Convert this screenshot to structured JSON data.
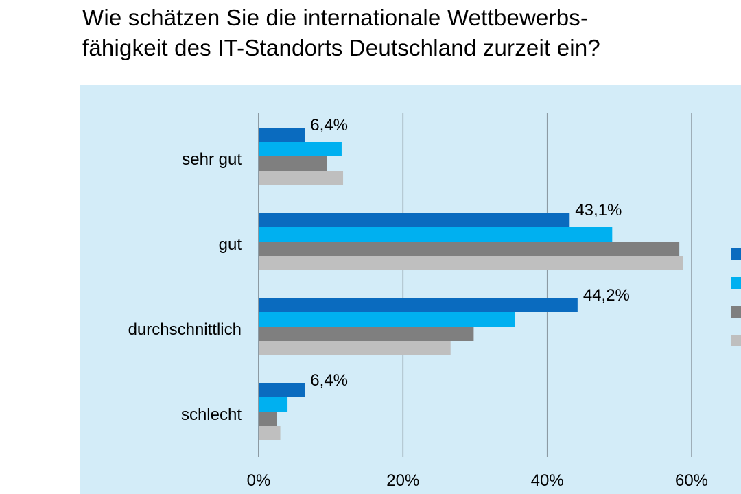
{
  "title": {
    "line1": "Wie schätzen Sie die internationale Wettbewerbs-",
    "line2": "fähigkeit des IT-Standorts Deutschland zurzeit ein?"
  },
  "chart_data": {
    "type": "bar",
    "orientation": "horizontal",
    "title": "Wie schätzen Sie die internationale Wettbewerbsfähigkeit des IT-Standorts Deutschland zurzeit ein?",
    "categories": [
      "sehr gut",
      "gut",
      "durchschnittlich",
      "schlecht"
    ],
    "series": [
      {
        "color": "#0a6bbf",
        "values": [
          6.4,
          43.1,
          44.2,
          6.4
        ],
        "labels": [
          "6,4%",
          "43,1%",
          "44,2%",
          "6,4%"
        ]
      },
      {
        "color": "#00b0f0",
        "values": [
          11.5,
          49.0,
          35.5,
          4.0
        ]
      },
      {
        "color": "#7f7f7f",
        "values": [
          9.5,
          58.3,
          29.8,
          2.5
        ]
      },
      {
        "color": "#bfbfbf",
        "values": [
          11.7,
          58.8,
          26.6,
          3.0
        ]
      }
    ],
    "xlim": [
      0,
      60
    ],
    "xticks": [
      "0%",
      "20%",
      "40%",
      "60%"
    ],
    "grid": true,
    "legend_placement": "right"
  }
}
